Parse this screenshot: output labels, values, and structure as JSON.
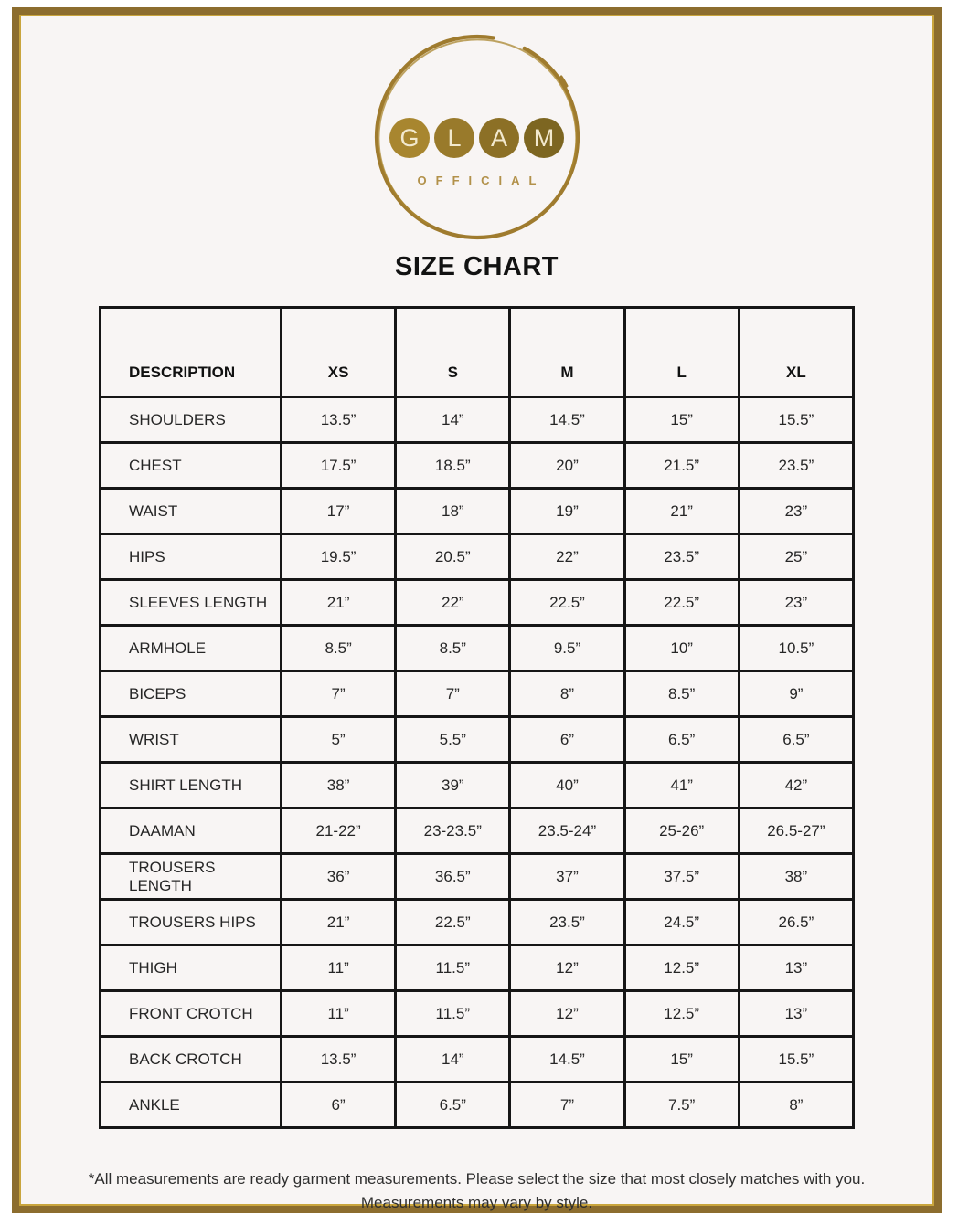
{
  "theme": {
    "page_bg": "#ffffff",
    "content_bg": "#f8f5f4",
    "frame_gold": "#8c6d2e",
    "frame_highlight": "#c9a53d",
    "ring_gold": "#9f7b2e",
    "letter_color": "#f2e9ce",
    "official_color": "#b2914a",
    "table_line": "#161616"
  },
  "logo": {
    "letters": [
      "G",
      "L",
      "A",
      "M"
    ],
    "letter_circle_colors": [
      "#a8862f",
      "#997a2b",
      "#8c7026",
      "#7d6621"
    ],
    "subtitle": "OFFICIAL"
  },
  "title": "SIZE CHART",
  "table": {
    "columns": [
      "DESCRIPTION",
      "XS",
      "S",
      "M",
      "L",
      "XL"
    ],
    "rows": [
      {
        "label": "SHOULDERS",
        "values": [
          "13.5”",
          "14”",
          "14.5”",
          "15”",
          "15.5”"
        ]
      },
      {
        "label": "CHEST",
        "values": [
          "17.5”",
          "18.5”",
          "20”",
          "21.5”",
          "23.5”"
        ]
      },
      {
        "label": "WAIST",
        "values": [
          "17”",
          "18”",
          "19”",
          "21”",
          "23”"
        ]
      },
      {
        "label": "HIPS",
        "values": [
          "19.5”",
          "20.5”",
          "22”",
          "23.5”",
          "25”"
        ]
      },
      {
        "label": "SLEEVES LENGTH",
        "values": [
          "21”",
          "22”",
          "22.5”",
          "22.5”",
          "23”"
        ]
      },
      {
        "label": "ARMHOLE",
        "values": [
          "8.5”",
          "8.5”",
          "9.5”",
          "10”",
          "10.5”"
        ]
      },
      {
        "label": "BICEPS",
        "values": [
          "7”",
          "7”",
          "8”",
          "8.5”",
          "9”"
        ]
      },
      {
        "label": "WRIST",
        "values": [
          "5”",
          "5.5”",
          "6”",
          "6.5”",
          "6.5”"
        ]
      },
      {
        "label": "SHIRT LENGTH",
        "values": [
          "38”",
          "39”",
          "40”",
          "41”",
          "42”"
        ]
      },
      {
        "label": "DAAMAN",
        "values": [
          "21-22”",
          "23-23.5”",
          "23.5-24”",
          "25-26”",
          "26.5-27”"
        ]
      },
      {
        "label": "TROUSERS LENGTH",
        "values": [
          "36”",
          "36.5”",
          "37”",
          "37.5”",
          "38”"
        ]
      },
      {
        "label": "TROUSERS HIPS",
        "values": [
          "21”",
          "22.5”",
          "23.5”",
          "24.5”",
          "26.5”"
        ]
      },
      {
        "label": "THIGH",
        "values": [
          "11”",
          "11.5”",
          "12”",
          "12.5”",
          "13”"
        ]
      },
      {
        "label": "FRONT CROTCH",
        "values": [
          "11”",
          "11.5”",
          "12”",
          "12.5”",
          "13”"
        ]
      },
      {
        "label": "BACK CROTCH",
        "values": [
          "13.5”",
          "14”",
          "14.5”",
          "15”",
          "15.5”"
        ]
      },
      {
        "label": "ANKLE",
        "values": [
          "6”",
          "6.5”",
          "7”",
          "7.5”",
          "8”"
        ]
      }
    ]
  },
  "footer": {
    "line1": "*All measurements are ready garment measurements. Please select the size that most closely matches with you.",
    "line2": "Measurements may vary by style."
  }
}
